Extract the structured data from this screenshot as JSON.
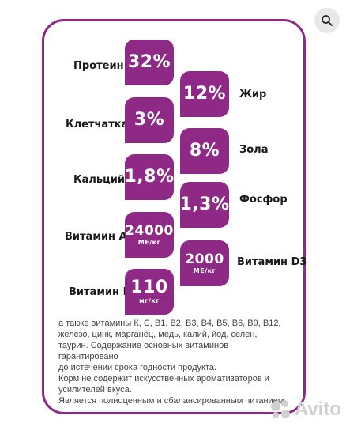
{
  "items": [
    {
      "label": "Протеин",
      "value": "32%"
    },
    {
      "label": "Жир",
      "value": "12%"
    },
    {
      "label": "Клетчатка",
      "value": "3%"
    },
    {
      "label": "Зола",
      "value": "8%"
    },
    {
      "label": "Кальций",
      "value": "1,8%"
    },
    {
      "label": "Фосфор",
      "value": "1,3%"
    },
    {
      "label": "Витамин А",
      "value": "24000",
      "unit": "МЕ/кг"
    },
    {
      "label": "Витамин D3",
      "value": "2000",
      "unit": "МЕ/кг"
    },
    {
      "label": "Витамин Е",
      "value": "110",
      "unit": "мг/кг"
    }
  ],
  "note": [
    "а также витамины К, С, В1, В2, В3, В4, В5, В6, В9, В12,",
    "железо, цинк, марганец, медь, калий, йод, селен,",
    "таурин. Содержание основных витаминов гарантировано",
    "до истечении срока годности продукта.",
    "Корм не содержит искусственных ароматизаторов и",
    "усилителей вкуса.",
    "Является полноценным и сбалансированным питанием."
  ],
  "watermark": "Avito",
  "colors": {
    "accent": "#8e2a86",
    "text": "#1a1a1a"
  }
}
